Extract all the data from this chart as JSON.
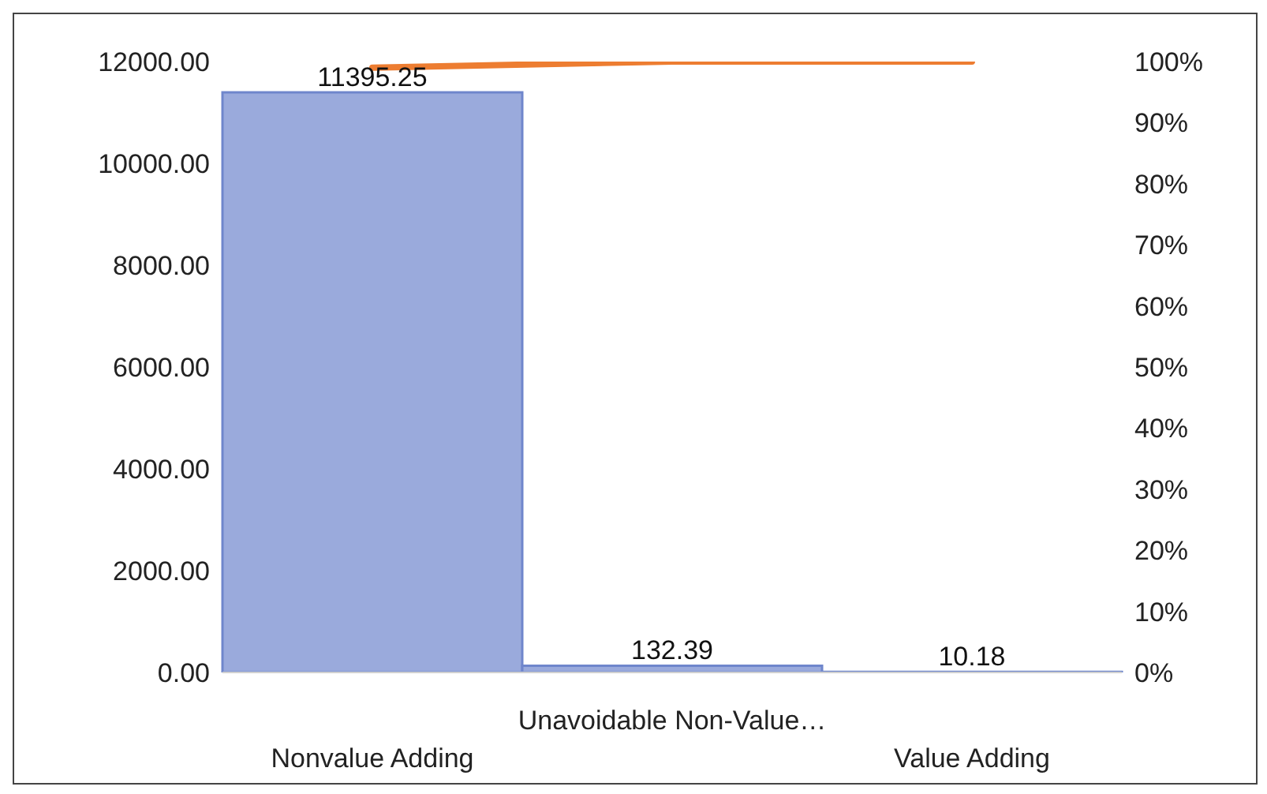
{
  "chart_data": {
    "type": "bar",
    "categories": [
      "Nonvalue Adding",
      "Unavoidable Non-Value…",
      "Value Adding"
    ],
    "series": [
      {
        "color": "#9aaadc",
        "values": [
          11395.25,
          132.39,
          10.18
        ],
        "value_labels": [
          "11395.25",
          "132.39",
          "10.18"
        ]
      },
      {
        "type": "line",
        "axis": "y2",
        "color": "#ed7d31",
        "values": [
          99,
          100,
          100
        ]
      }
    ],
    "marker": "none",
    "grid": false,
    "legend": false,
    "ylim": [
      0,
      12000
    ],
    "yticks": [
      {
        "value": 0,
        "label": "0.00"
      },
      {
        "value": 2000,
        "label": "2000.00"
      },
      {
        "value": 4000,
        "label": "4000.00"
      },
      {
        "value": 6000,
        "label": "6000.00"
      },
      {
        "value": 8000,
        "label": "8000.00"
      },
      {
        "value": 10000,
        "label": "10000.00"
      },
      {
        "value": 12000,
        "label": "12000.00"
      }
    ],
    "y2lim": [
      0,
      100
    ],
    "y2ticks": [
      {
        "value": 0,
        "label": "0%"
      },
      {
        "value": 10,
        "label": "10%"
      },
      {
        "value": 20,
        "label": "20%"
      },
      {
        "value": 30,
        "label": "30%"
      },
      {
        "value": 40,
        "label": "40%"
      },
      {
        "value": 50,
        "label": "50%"
      },
      {
        "value": 60,
        "label": "60%"
      },
      {
        "value": 70,
        "label": "70%"
      },
      {
        "value": 80,
        "label": "80%"
      },
      {
        "value": 90,
        "label": "90%"
      },
      {
        "value": 100,
        "label": "100%"
      }
    ]
  }
}
